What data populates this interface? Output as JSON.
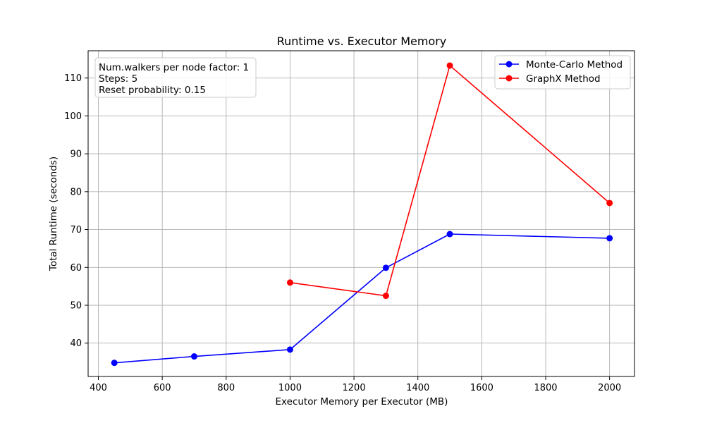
{
  "chart_data": {
    "type": "line",
    "title": "Runtime vs. Executor Memory",
    "xlabel": "Executor Memory per Executor (MB)",
    "ylabel": "Total Runtime (seconds)",
    "xlim": [
      368,
      2078
    ],
    "ylim": [
      31.2,
      117.2
    ],
    "xticks": [
      400,
      600,
      800,
      1000,
      1200,
      1400,
      1600,
      1800,
      2000
    ],
    "yticks": [
      40,
      50,
      60,
      70,
      80,
      90,
      100,
      110
    ],
    "grid": true,
    "legend_position": "top-right",
    "annotation": {
      "lines": [
        "Num.walkers per node factor: 1",
        "Steps: 5",
        "Reset probability: 0.15"
      ],
      "position": "top-left"
    },
    "series": [
      {
        "name": "Monte-Carlo Method",
        "color": "#0000ff",
        "marker": "circle",
        "x": [
          450,
          700,
          1000,
          1300,
          1500,
          2000
        ],
        "y": [
          34.8,
          36.5,
          38.3,
          59.9,
          68.8,
          67.7
        ]
      },
      {
        "name": "GraphX Method",
        "color": "#ff0000",
        "marker": "circle",
        "x": [
          1000,
          1300,
          1500,
          2000
        ],
        "y": [
          56.0,
          52.5,
          113.3,
          77.0
        ]
      }
    ]
  }
}
